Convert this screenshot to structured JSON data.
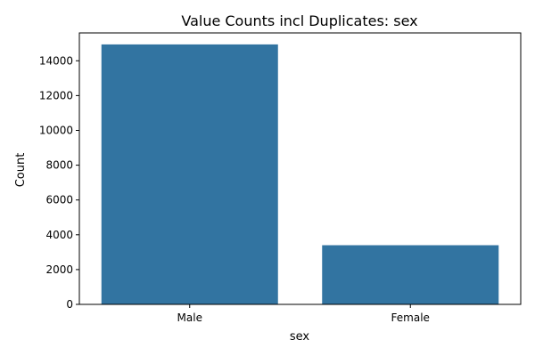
{
  "chart_data": {
    "type": "bar",
    "title": "Value Counts incl Duplicates: sex",
    "xlabel": "sex",
    "ylabel": "Count",
    "categories": [
      "Male",
      "Female"
    ],
    "values": [
      14940,
      3400
    ],
    "ylim": [
      0,
      15600
    ],
    "yticks": [
      0,
      2000,
      4000,
      6000,
      8000,
      10000,
      12000,
      14000
    ],
    "grid": false,
    "legend": "none",
    "bar_color": "#3274a1"
  }
}
